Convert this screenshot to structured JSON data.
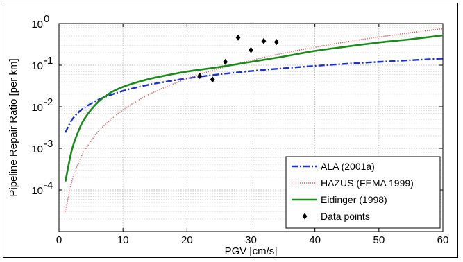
{
  "chart_data": {
    "type": "line",
    "y_scale": "log",
    "xlim": [
      0,
      60
    ],
    "ylim": [
      1e-05,
      1
    ],
    "x_ticks": [
      0,
      10,
      20,
      30,
      40,
      50,
      60
    ],
    "x_tick_labels": [
      "0",
      "10",
      "20",
      "30",
      "40",
      "50",
      "60"
    ],
    "y_ticks": [
      1,
      0.1,
      0.01,
      0.001,
      0.0001
    ],
    "y_tick_labels": [
      {
        "base": "10",
        "exp": "0"
      },
      {
        "base": "10",
        "exp": "-1"
      },
      {
        "base": "10",
        "exp": "-2"
      },
      {
        "base": "10",
        "exp": "-3"
      },
      {
        "base": "10",
        "exp": "-4"
      }
    ],
    "xlabel": "PGV [cm/s]",
    "ylabel": "Pipeline Repair Ratio [per km]",
    "grid": true,
    "legend_position": "bottom-right",
    "series": [
      {
        "name": "ALA (2001a)",
        "style": "dash-dot",
        "color": "#1a2fd6",
        "x": [
          1,
          2,
          3,
          4,
          6,
          8,
          10,
          12,
          15,
          20,
          25,
          30,
          35,
          40,
          45,
          50,
          55,
          60
        ],
        "y": [
          0.0024,
          0.0048,
          0.0072,
          0.0096,
          0.0144,
          0.019,
          0.024,
          0.0288,
          0.036,
          0.048,
          0.06,
          0.072,
          0.084,
          0.096,
          0.108,
          0.12,
          0.132,
          0.144
        ]
      },
      {
        "name": "HAZUS (FEMA 1999)",
        "style": "dotted",
        "color": "#e06060",
        "x": [
          1,
          2,
          3,
          4,
          6,
          8,
          10,
          12,
          15,
          20,
          25,
          30,
          35,
          40,
          45,
          50,
          55,
          60
        ],
        "y": [
          3e-05,
          0.00016,
          0.00043,
          0.00088,
          0.0024,
          0.0048,
          0.0084,
          0.0132,
          0.023,
          0.0474,
          0.0827,
          0.13,
          0.193,
          0.27,
          0.365,
          0.475,
          0.603,
          0.75
        ]
      },
      {
        "name": "Eidinger (1998)",
        "style": "solid",
        "color": "#1a8a1a",
        "x": [
          1,
          2,
          3,
          4,
          6,
          8,
          10,
          12,
          15,
          20,
          25,
          30,
          35,
          40,
          45,
          50,
          55,
          60
        ],
        "y": [
          0.00016,
          0.0009,
          0.0025,
          0.0052,
          0.0125,
          0.0215,
          0.03,
          0.038,
          0.05,
          0.07,
          0.09,
          0.12,
          0.16,
          0.22,
          0.28,
          0.35,
          0.42,
          0.52
        ]
      },
      {
        "name": "Data points",
        "style": "markers",
        "color": "#000000",
        "x": [
          22,
          24,
          26,
          28,
          30,
          32,
          34
        ],
        "y": [
          0.055,
          0.045,
          0.12,
          0.46,
          0.23,
          0.38,
          0.36
        ]
      }
    ]
  }
}
